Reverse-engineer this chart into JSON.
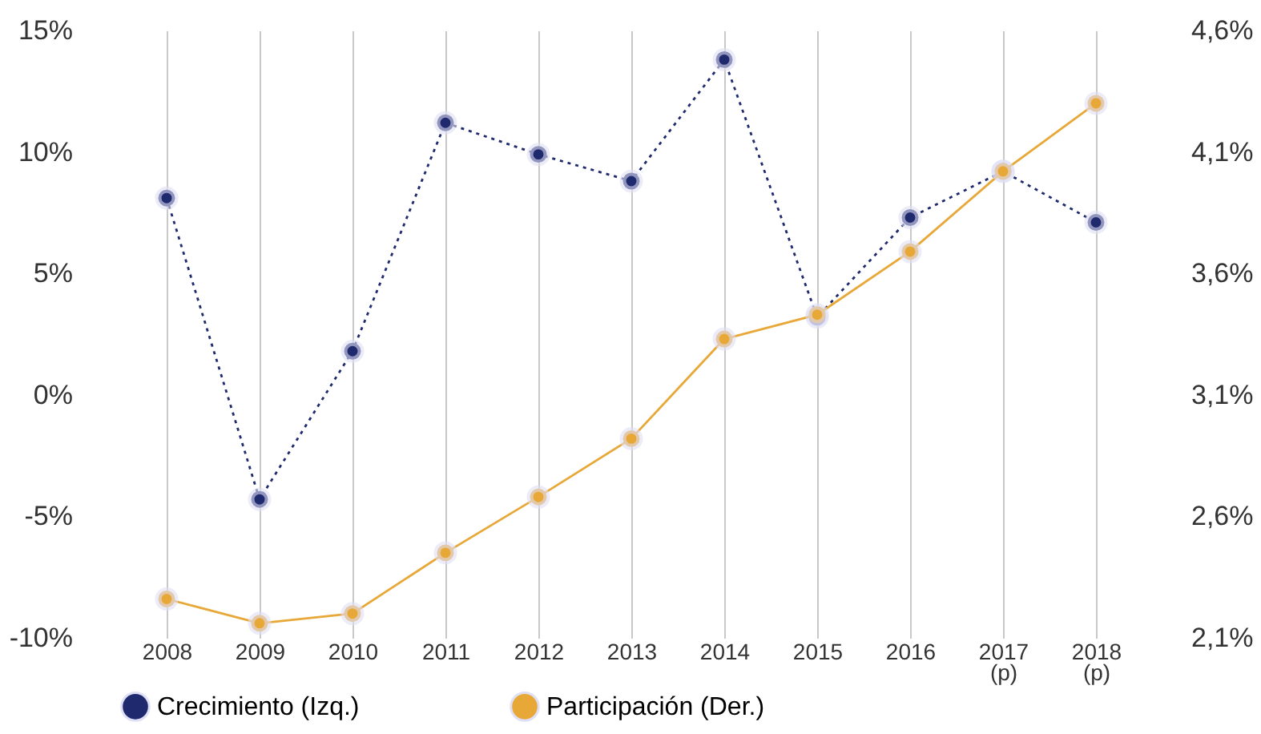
{
  "chart_data": {
    "type": "line",
    "categories": [
      "2008",
      "2009",
      "2010",
      "2011",
      "2012",
      "2013",
      "2014",
      "2015",
      "2016",
      "2017\n(p)",
      "2018\n(p)"
    ],
    "series": [
      {
        "name": "Crecimiento (Izq.)",
        "color": "#1f2a6e",
        "line_style": "dotted",
        "values": [
          8.1,
          -4.3,
          1.8,
          11.2,
          9.9,
          8.8,
          13.8,
          3.2,
          7.3,
          9.2,
          7.1
        ]
      },
      {
        "name": "Participación (Der.)",
        "color": "#e8a838",
        "axis": "y2",
        "line_style": "solid",
        "values": [
          2.26,
          2.16,
          2.2,
          2.45,
          2.68,
          2.92,
          3.33,
          3.43,
          3.69,
          4.02,
          4.3
        ]
      }
    ],
    "ylim": [
      -10,
      15
    ],
    "yticks": [
      {
        "value": -10,
        "label": "-10%"
      },
      {
        "value": -5,
        "label": "-5%"
      },
      {
        "value": 0,
        "label": "0%"
      },
      {
        "value": 5,
        "label": "5%"
      },
      {
        "value": 10,
        "label": "10%"
      },
      {
        "value": 15,
        "label": "15%"
      }
    ],
    "y2lim": [
      2.1,
      4.6
    ],
    "y2ticks": [
      {
        "value": 2.1,
        "label": "2,1%"
      },
      {
        "value": 2.6,
        "label": "2,6%"
      },
      {
        "value": 3.1,
        "label": "3,1%"
      },
      {
        "value": 3.6,
        "label": "3,6%"
      },
      {
        "value": 4.1,
        "label": "4,1%"
      },
      {
        "value": 4.6,
        "label": "4,6%"
      }
    ],
    "grid": "x",
    "legend": "bottom left",
    "marker": "circle"
  }
}
